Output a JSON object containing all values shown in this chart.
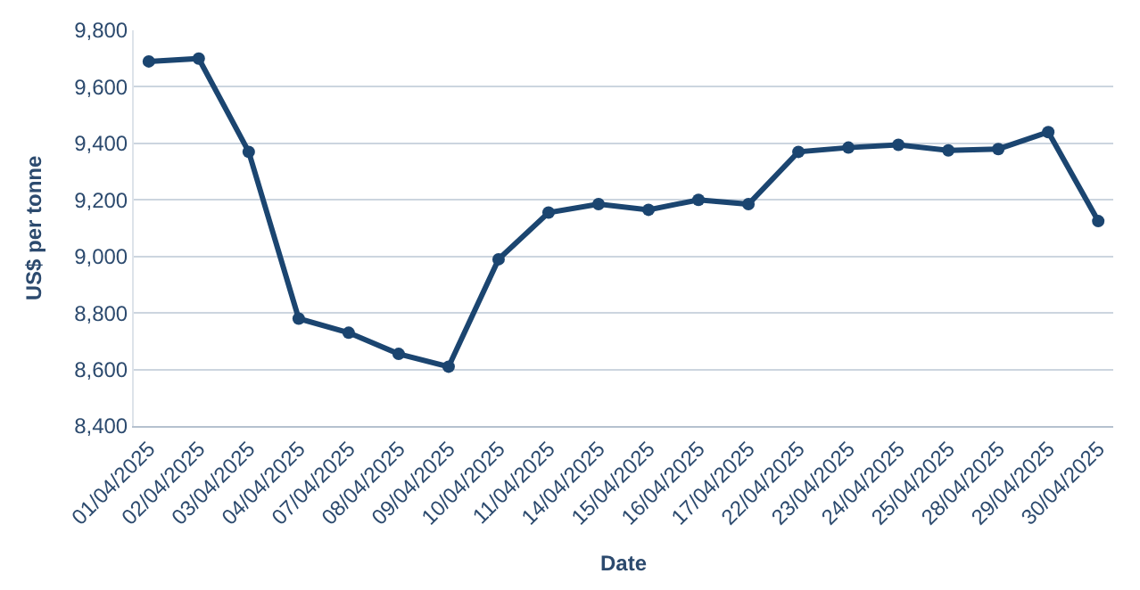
{
  "chart_data": {
    "type": "line",
    "xlabel": "Date",
    "ylabel": "US$ per tonne",
    "categories": [
      "01/04/2025",
      "02/04/2025",
      "03/04/2025",
      "04/04/2025",
      "07/04/2025",
      "08/04/2025",
      "09/04/2025",
      "10/04/2025",
      "11/04/2025",
      "14/04/2025",
      "15/04/2025",
      "16/04/2025",
      "17/04/2025",
      "22/04/2025",
      "23/04/2025",
      "24/04/2025",
      "25/04/2025",
      "28/04/2025",
      "29/04/2025",
      "30/04/2025"
    ],
    "series": [
      {
        "color": "#1b4570",
        "values": [
          9690,
          9700,
          9370,
          8780,
          8730,
          8655,
          8610,
          8990,
          9155,
          9185,
          9165,
          9200,
          9185,
          9370,
          9385,
          9395,
          9375,
          9380,
          9440,
          9125
        ]
      }
    ],
    "ylim": [
      8400,
      9800
    ],
    "yticks": [
      {
        "value": 8400,
        "label": "8,400"
      },
      {
        "value": 8600,
        "label": "8,600"
      },
      {
        "value": 8800,
        "label": "8,800"
      },
      {
        "value": 9000,
        "label": "9,000"
      },
      {
        "value": 9200,
        "label": "9,200"
      },
      {
        "value": 9400,
        "label": "9,400"
      },
      {
        "value": 9600,
        "label": "9,600"
      },
      {
        "value": 9800,
        "label": "9,800"
      }
    ],
    "grid": "y",
    "marker": "circle",
    "line_style": "solid"
  }
}
